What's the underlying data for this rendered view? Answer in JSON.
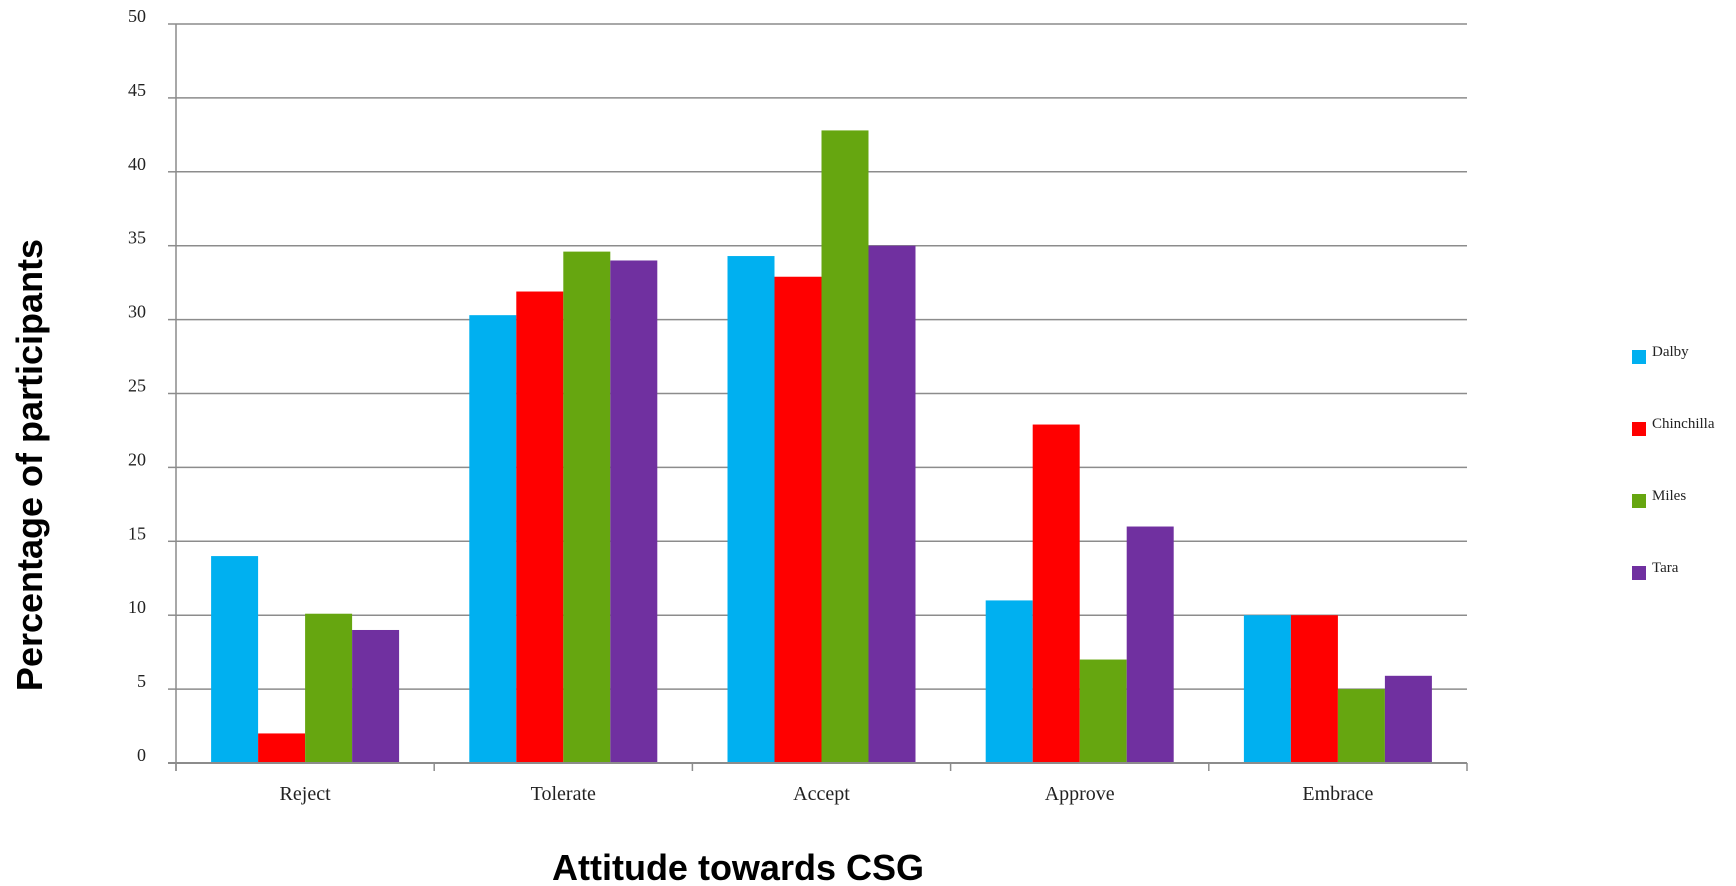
{
  "chart_data": {
    "type": "bar",
    "xlabel": "Attitude towards CSG",
    "ylabel": "Percentage of participants",
    "ylim": [
      0,
      50
    ],
    "yticks": [
      0,
      5,
      10,
      15,
      20,
      25,
      30,
      35,
      40,
      45,
      50
    ],
    "grid": true,
    "legend_position": "right",
    "categories": [
      "Reject",
      "Tolerate",
      "Accept",
      "Approve",
      "Embrace"
    ],
    "series": [
      {
        "name": "Dalby",
        "color": "#00b0f0",
        "values": [
          14,
          30.3,
          34.3,
          11,
          10
        ]
      },
      {
        "name": "Chinchilla",
        "color": "#ff0000",
        "values": [
          2,
          31.9,
          32.9,
          22.9,
          10
        ]
      },
      {
        "name": "Miles",
        "color": "#66a610",
        "values": [
          10.1,
          34.6,
          42.8,
          7,
          5
        ]
      },
      {
        "name": "Tara",
        "color": "#7030a0",
        "values": [
          9,
          34,
          35,
          16,
          5.9
        ]
      }
    ]
  }
}
